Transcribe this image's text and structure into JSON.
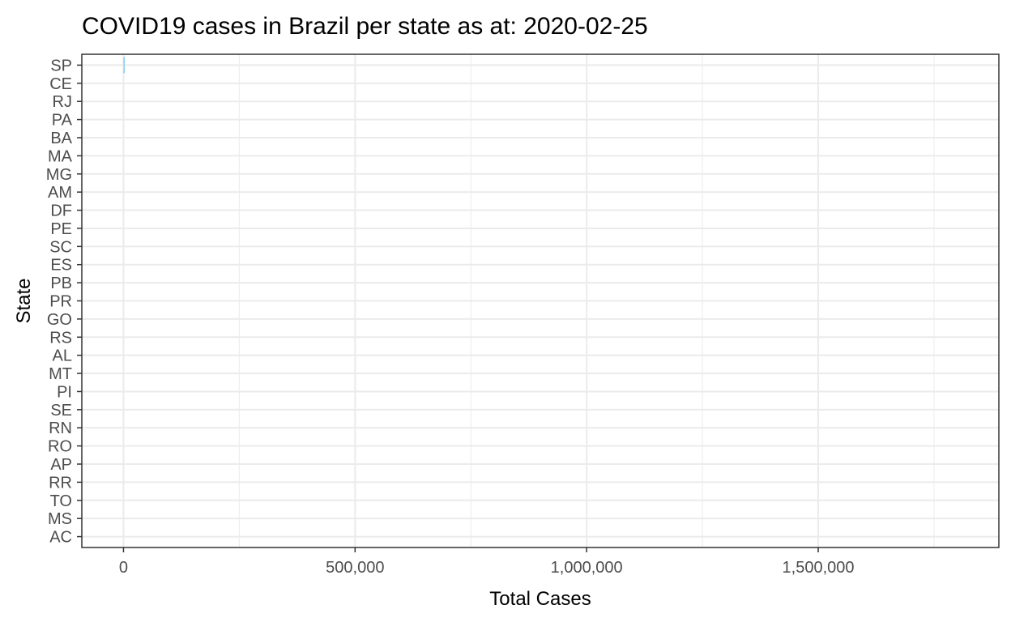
{
  "chart_data": {
    "type": "bar",
    "orientation": "horizontal",
    "title": "COVID19 cases in Brazil per state as at: 2020-02-25",
    "xlabel": "Total Cases",
    "ylabel": "State",
    "categories": [
      "SP",
      "CE",
      "RJ",
      "PA",
      "BA",
      "MA",
      "MG",
      "AM",
      "DF",
      "PE",
      "SC",
      "ES",
      "PB",
      "PR",
      "GO",
      "RS",
      "AL",
      "MT",
      "PI",
      "SE",
      "RN",
      "RO",
      "AP",
      "RR",
      "TO",
      "MS",
      "AC"
    ],
    "values": [
      1,
      0,
      0,
      0,
      0,
      0,
      0,
      0,
      0,
      0,
      0,
      0,
      0,
      0,
      0,
      0,
      0,
      0,
      0,
      0,
      0,
      0,
      0,
      0,
      0,
      0,
      0
    ],
    "xlim": [
      -90000,
      1890000
    ],
    "x_ticks": [
      0,
      500000,
      1000000,
      1500000
    ],
    "x_tick_labels": [
      "0",
      "500,000",
      "1,000,000",
      "1,500,000"
    ],
    "x_minor_ticks": [
      250000,
      750000,
      1250000,
      1750000
    ],
    "bar_color": "#87ceeb",
    "grid": true,
    "legend": "none"
  }
}
